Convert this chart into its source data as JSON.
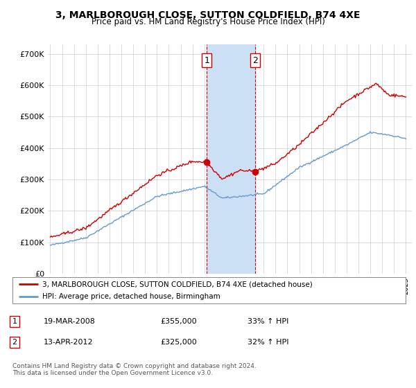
{
  "title": "3, MARLBOROUGH CLOSE, SUTTON COLDFIELD, B74 4XE",
  "subtitle": "Price paid vs. HM Land Registry's House Price Index (HPI)",
  "title_fontsize": 10,
  "subtitle_fontsize": 8.5,
  "ylabel_ticks": [
    "£0",
    "£100K",
    "£200K",
    "£300K",
    "£400K",
    "£500K",
    "£600K",
    "£700K"
  ],
  "ytick_values": [
    0,
    100000,
    200000,
    300000,
    400000,
    500000,
    600000,
    700000
  ],
  "ylim": [
    0,
    730000
  ],
  "xlim_start": 1994.8,
  "xlim_end": 2025.5,
  "purchase1_x": 2008.21,
  "purchase1_y": 355000,
  "purchase1_label": "19-MAR-2008",
  "purchase1_price": "£355,000",
  "purchase1_hpi": "33% ↑ HPI",
  "purchase2_x": 2012.28,
  "purchase2_y": 325000,
  "purchase2_label": "13-APR-2012",
  "purchase2_price": "£325,000",
  "purchase2_hpi": "32% ↑ HPI",
  "shade_color": "#cce0f5",
  "dashed_line_color": "#cc0000",
  "property_line_color": "#cc0000",
  "hpi_line_color": "#6699cc",
  "background_color": "#ffffff",
  "grid_color": "#cccccc",
  "legend_property_label": "3, MARLBOROUGH CLOSE, SUTTON COLDFIELD, B74 4XE (detached house)",
  "legend_hpi_label": "HPI: Average price, detached house, Birmingham",
  "footnote": "Contains HM Land Registry data © Crown copyright and database right 2024.\nThis data is licensed under the Open Government Licence v3.0.",
  "marker_box_color": "#cc0000"
}
